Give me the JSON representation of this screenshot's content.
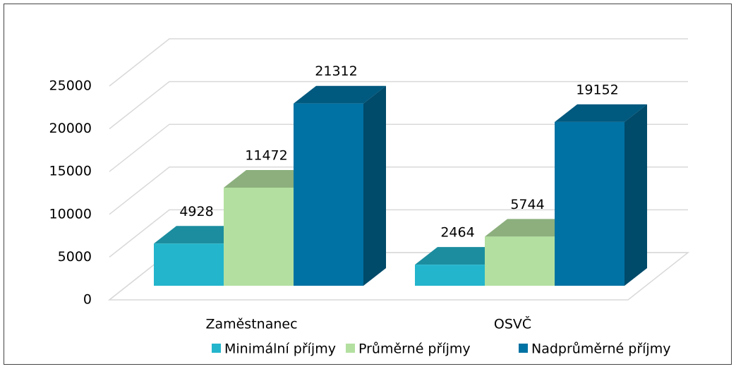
{
  "chart_data": {
    "type": "bar3d",
    "categories": [
      "Zaměstnanec",
      "OSVČ"
    ],
    "series": [
      {
        "name": "Minimální příjmy",
        "color": "#23b5cc",
        "values": [
          4928,
          2464
        ]
      },
      {
        "name": "Průměrné příjmy",
        "color": "#b3e0a0",
        "values": [
          11472,
          5744
        ]
      },
      {
        "name": "Nadprůměrné příjmy",
        "color": "#0072a3",
        "values": [
          21312,
          19152
        ]
      }
    ],
    "ylim": [
      0,
      25000
    ],
    "yticks": [
      0,
      5000,
      10000,
      15000,
      20000,
      25000
    ],
    "grid": true,
    "legend": "bottom"
  }
}
